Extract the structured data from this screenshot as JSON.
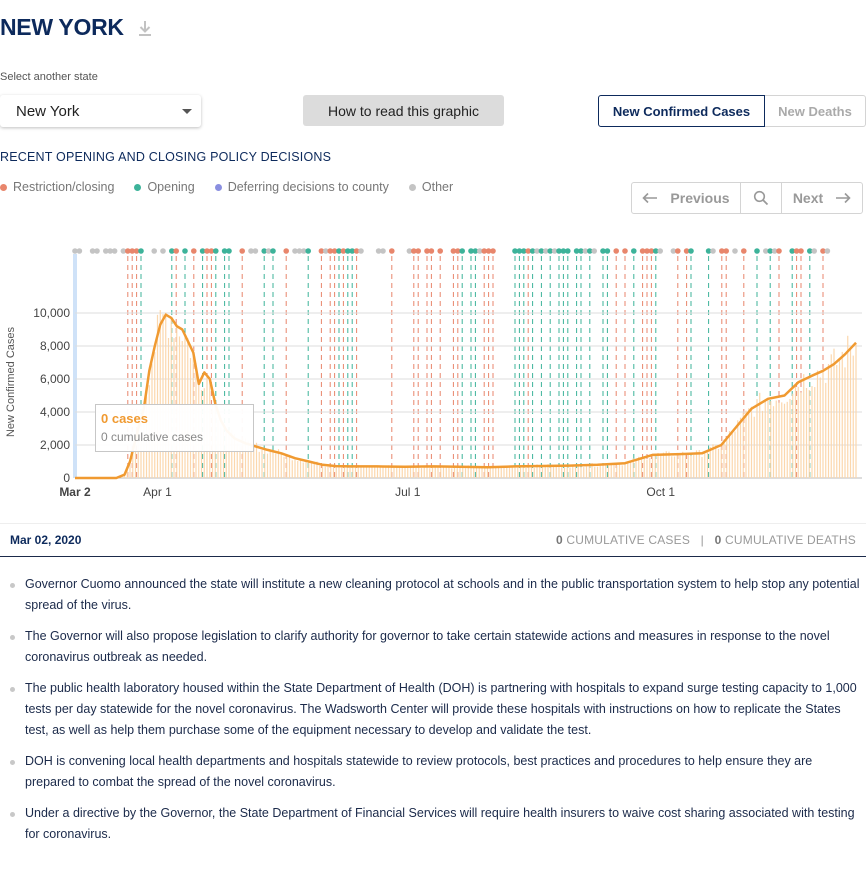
{
  "header": {
    "title": "NEW YORK",
    "download_icon": "download-icon"
  },
  "state_select": {
    "label": "Select another state",
    "value": "New York"
  },
  "buttons": {
    "how_to_read": "How to read this graphic"
  },
  "toggle": {
    "active": "New Confirmed Cases",
    "inactive": "New Deaths"
  },
  "policy": {
    "heading": "RECENT OPENING AND CLOSING POLICY DECISIONS",
    "legend": [
      {
        "label": "Restriction/closing",
        "color": "#e8866c"
      },
      {
        "label": "Opening",
        "color": "#3db39a"
      },
      {
        "label": "Deferring decisions to county",
        "color": "#8a8fe0"
      },
      {
        "label": "Other",
        "color": "#c4c4c4"
      }
    ]
  },
  "pager": {
    "previous": "Previous",
    "next": "Next"
  },
  "tooltip": {
    "cases": "0 cases",
    "cumulative": "0 cumulative cases"
  },
  "selected": {
    "date": "Mar 02, 2020",
    "cum_cases_value": "0",
    "cum_cases_label": "CUMULATIVE CASES",
    "separator": "|",
    "cum_deaths_value": "0",
    "cum_deaths_label": "CUMULATIVE DEATHS"
  },
  "bullets": [
    "Governor Cuomo announced the state will institute a new cleaning protocol at schools and in the public transportation system to help stop any potential spread of the virus.",
    "The Governor will also propose legislation to clarify authority for governor to take certain statewide actions and measures in response to the novel coronavirus outbreak as needed.",
    "The public health laboratory housed within the State Department of Health (DOH) is partnering with hospitals to expand surge testing capacity to 1,000 tests per day statewide for the novel coronavirus. The Wadsworth Center will provide these hospitals with instructions on how to replicate the States test, as well as help them purchase some of the equipment necessary to develop and validate the test.",
    "DOH is convening local health departments and hospitals statewide to review protocols, best practices and procedures to help ensure they are prepared to combat the spread of the novel coronavirus.",
    "Under a directive by the Governor, the State Department of Financial Services will require health insurers to waive cost sharing associated with testing for coronavirus."
  ],
  "chart_data": {
    "type": "line",
    "ylabel": "New Confirmed Cases",
    "ylim": [
      0,
      11000
    ],
    "y_ticks": [
      "0",
      "2,000",
      "4,000",
      "6,000",
      "8,000",
      "10,000"
    ],
    "x_ticks": [
      "Mar 2",
      "Apr 1",
      "Jul 1",
      "Oct 1"
    ],
    "series": [
      {
        "color": "#f09a31",
        "x_day": [
          0,
          15,
          18,
          20,
          23,
          25,
          27,
          29,
          31,
          33,
          35,
          37,
          39,
          41,
          43,
          45,
          47,
          49,
          51,
          53,
          55,
          58,
          62,
          66,
          70,
          75,
          80,
          85,
          90,
          95,
          100,
          110,
          120,
          130,
          140,
          150,
          160,
          170,
          180,
          190,
          200,
          210,
          220,
          228,
          235,
          240,
          246,
          252,
          258,
          263,
          268,
          272,
          276,
          280,
          284
        ],
        "values": [
          0,
          0,
          200,
          1000,
          3000,
          4200,
          6500,
          8000,
          9300,
          9900,
          9700,
          9200,
          9000,
          8300,
          7600,
          5700,
          6400,
          6000,
          4500,
          3500,
          2900,
          2400,
          2100,
          1900,
          1700,
          1500,
          1200,
          1000,
          800,
          720,
          700,
          700,
          680,
          700,
          680,
          650,
          700,
          730,
          750,
          800,
          900,
          1400,
          1450,
          1500,
          2000,
          3000,
          4200,
          4800,
          5000,
          5800,
          6200,
          6500,
          6900,
          7500,
          8200
        ]
      }
    ]
  }
}
